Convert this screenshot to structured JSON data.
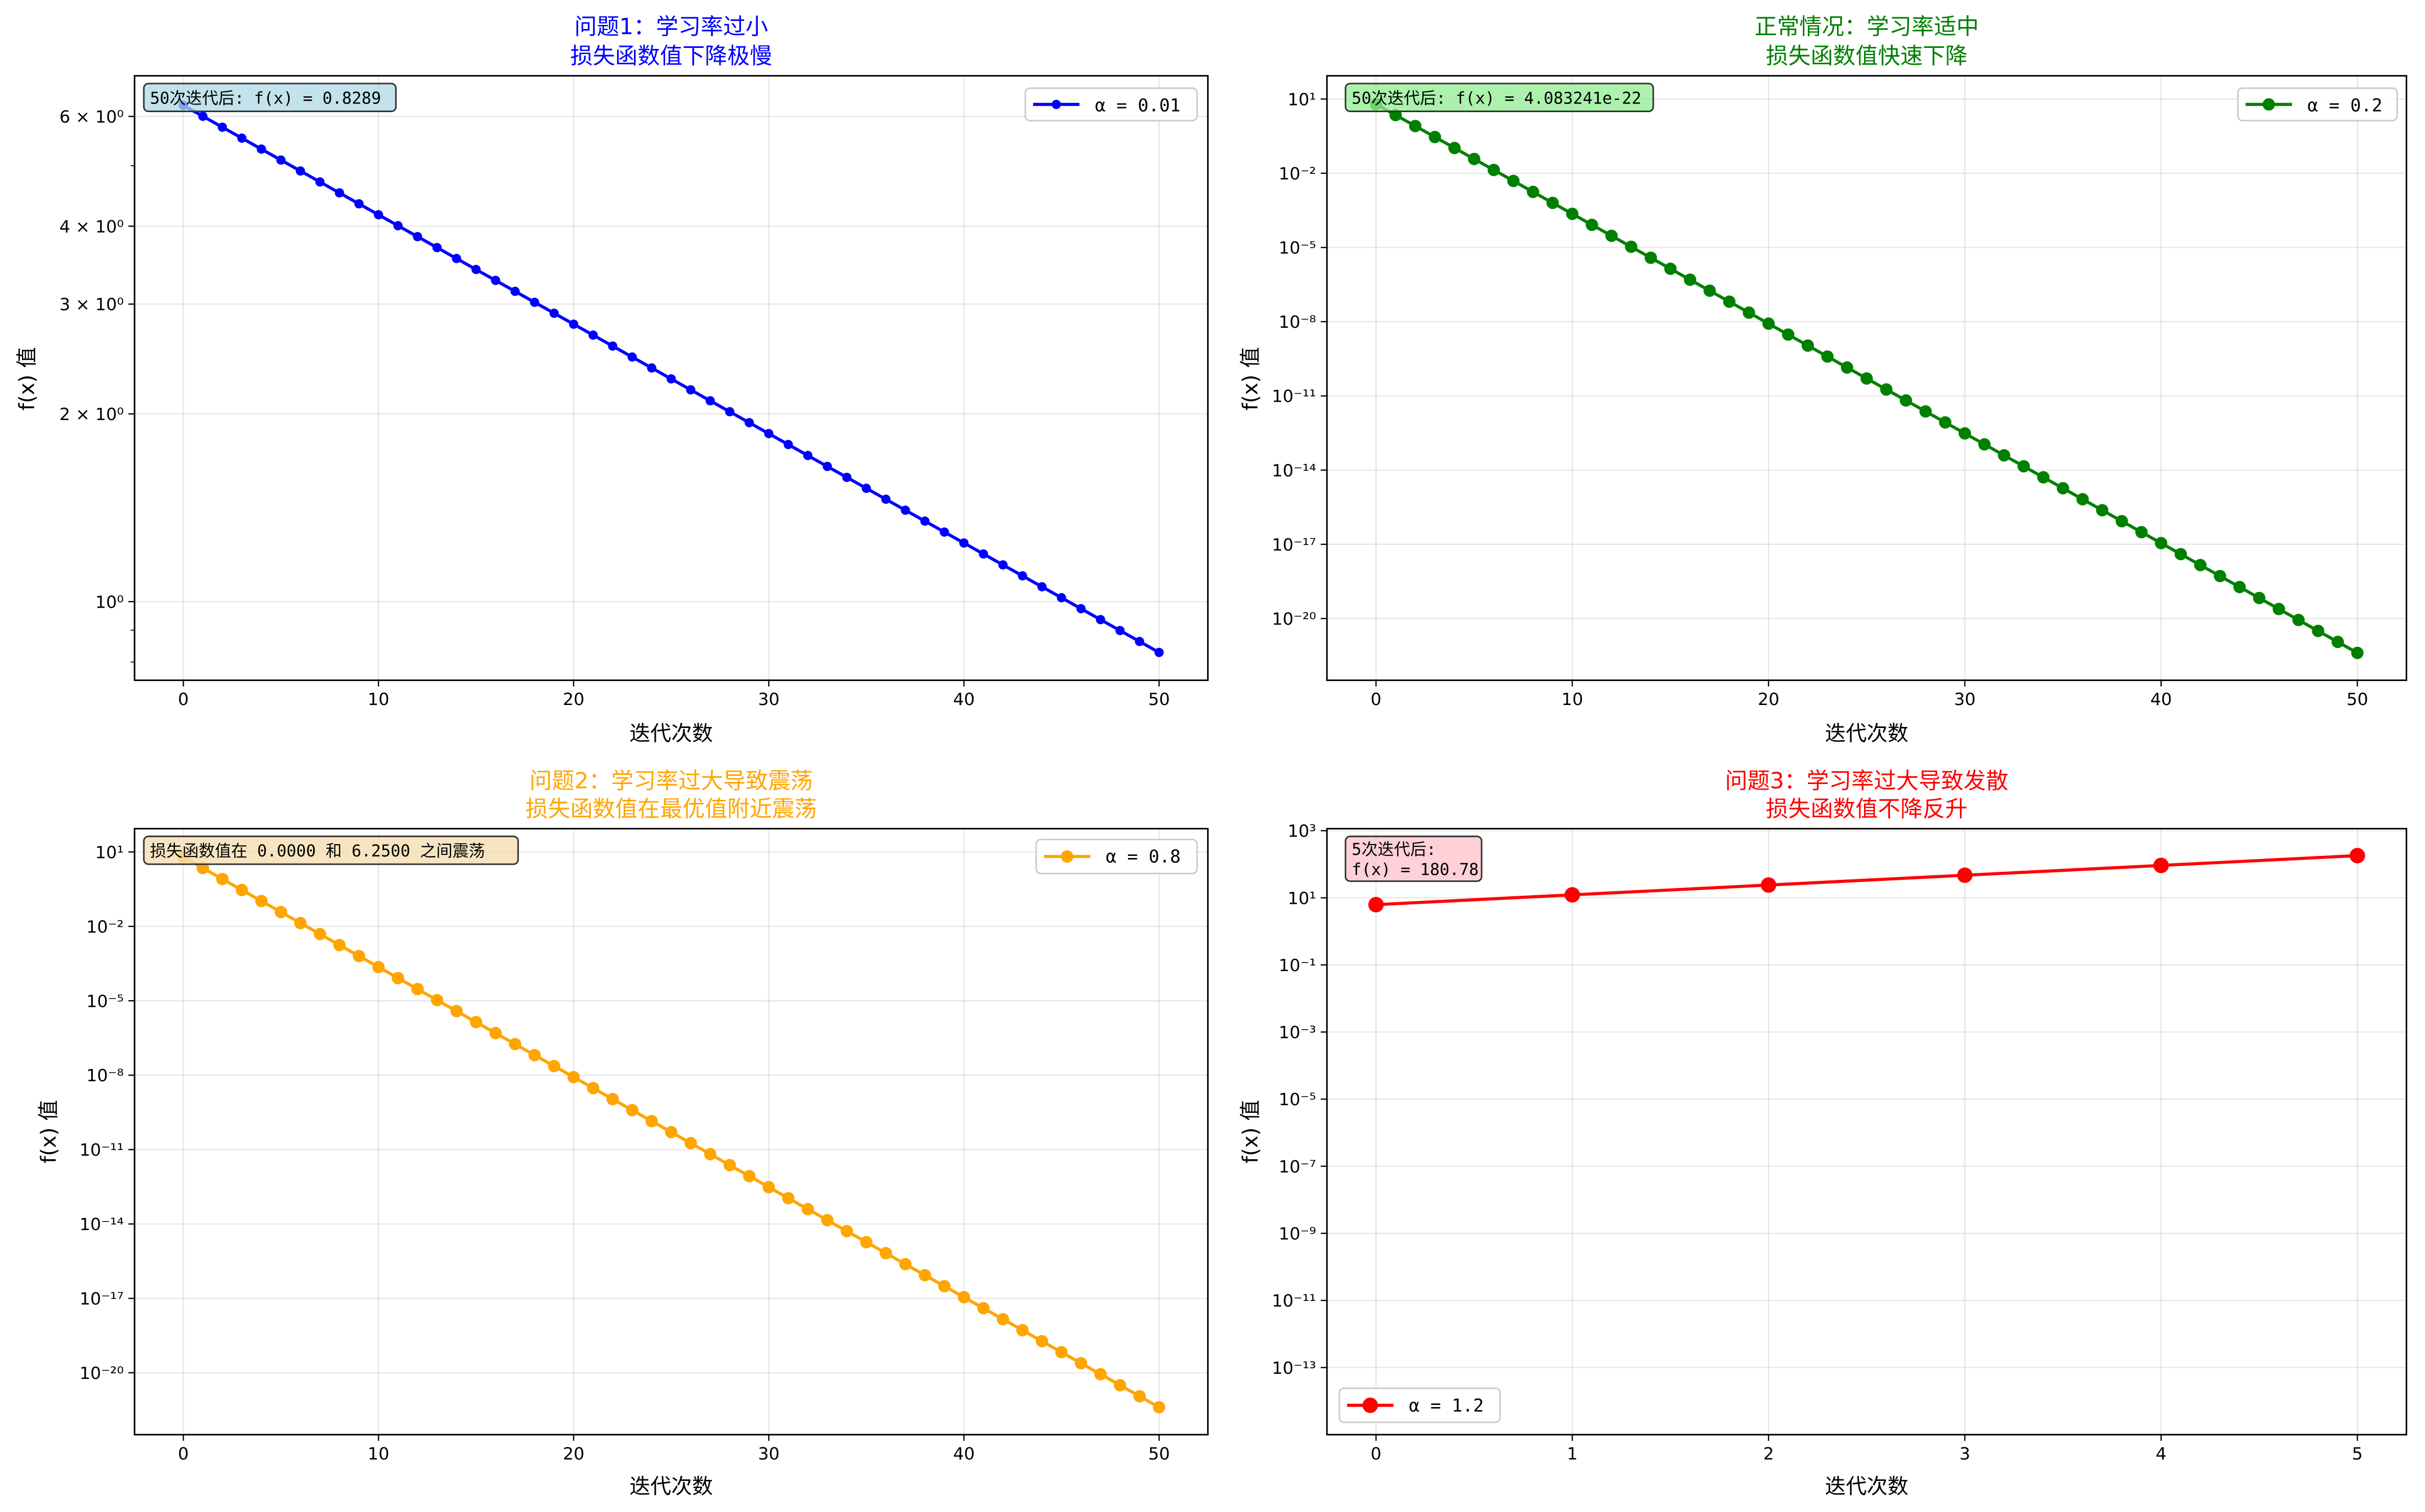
{
  "chart_data": [
    {
      "type": "line",
      "title": [
        "问题1：学习率过小",
        "损失函数值下降极慢"
      ],
      "title_color": "#0000ff",
      "xlabel": "迭代次数",
      "ylabel": "f(x) 值",
      "yscale": "log",
      "xlim": [
        -2.5,
        52.5
      ],
      "ylim": [
        0.748,
        6.97
      ],
      "grid": true,
      "xticks": [
        0,
        10,
        20,
        30,
        40,
        50
      ],
      "yticks": [
        {
          "value": 6,
          "label": "6 × 10⁰"
        },
        {
          "value": 4,
          "label": "4 × 10⁰"
        },
        {
          "value": 3,
          "label": "3 × 10⁰"
        },
        {
          "value": 2,
          "label": "2 × 10⁰"
        },
        {
          "value": 1,
          "label": "10⁰"
        }
      ],
      "legend": {
        "label": "α = 0.01",
        "placement": "upper-right"
      },
      "annotation": [
        "50次迭代后: f(x) = 0.8289"
      ],
      "annotation_color": "#add8e6",
      "series": [
        {
          "name": "α = 0.01",
          "color": "#0000ff",
          "x": [
            0,
            1,
            2,
            3,
            4,
            5,
            6,
            7,
            8,
            9,
            10,
            11,
            12,
            13,
            14,
            15,
            16,
            17,
            18,
            19,
            20,
            21,
            22,
            23,
            24,
            25,
            26,
            27,
            28,
            29,
            30,
            31,
            32,
            33,
            34,
            35,
            36,
            37,
            38,
            39,
            40,
            41,
            42,
            43,
            44,
            45,
            46,
            47,
            48,
            49,
            50
          ],
          "y": [
            6.25,
            6.0025,
            5.7648,
            5.5365,
            5.3172,
            5.1067,
            4.9044,
            4.7102,
            4.5237,
            4.3446,
            4.1725,
            4.0073,
            3.8486,
            3.6962,
            3.5498,
            3.4092,
            3.2742,
            3.1446,
            3.0201,
            2.9005,
            2.7856,
            2.6753,
            2.5694,
            2.4676,
            2.3699,
            2.2761,
            2.1859,
            2.0994,
            2.0162,
            1.9364,
            1.8597,
            1.7861,
            1.7153,
            1.6474,
            1.5822,
            1.5195,
            1.4594,
            1.4016,
            1.3461,
            1.2928,
            1.2416,
            1.1924,
            1.1452,
            1.0999,
            1.0563,
            1.0145,
            0.9743,
            0.9357,
            0.8987,
            0.8631,
            0.8289
          ]
        }
      ]
    },
    {
      "type": "line",
      "title": [
        "正常情况：学习率适中",
        "损失函数值快速下降"
      ],
      "title_color": "#008000",
      "xlabel": "迭代次数",
      "ylabel": "f(x) 值",
      "yscale": "log",
      "xlim": [
        -2.5,
        52.5
      ],
      "ylim": [
        3.2e-23,
        87
      ],
      "grid": true,
      "xticks": [
        0,
        10,
        20,
        30,
        40,
        50
      ],
      "yticks": [
        {
          "value": 10.0,
          "label": "10¹"
        },
        {
          "value": 0.01,
          "label": "10⁻²"
        },
        {
          "value": 1e-05,
          "label": "10⁻⁵"
        },
        {
          "value": 1e-08,
          "label": "10⁻⁸"
        },
        {
          "value": 1e-11,
          "label": "10⁻¹¹"
        },
        {
          "value": 1e-14,
          "label": "10⁻¹⁴"
        },
        {
          "value": 1e-17,
          "label": "10⁻¹⁷"
        },
        {
          "value": 1e-20,
          "label": "10⁻²⁰"
        }
      ],
      "legend": {
        "label": "α = 0.2",
        "placement": "upper-right"
      },
      "annotation": [
        "50次迭代后: f(x) = 4.083241e-22"
      ],
      "annotation_color": "#90ee90",
      "series": [
        {
          "name": "α = 0.2",
          "color": "#008000",
          "x": [
            0,
            1,
            2,
            3,
            4,
            5,
            6,
            7,
            8,
            9,
            10,
            11,
            12,
            13,
            14,
            15,
            16,
            17,
            18,
            19,
            20,
            21,
            22,
            23,
            24,
            25,
            26,
            27,
            28,
            29,
            30,
            31,
            32,
            33,
            34,
            35,
            36,
            37,
            38,
            39,
            40,
            41,
            42,
            43,
            44,
            45,
            46,
            47,
            48,
            49,
            50
          ],
          "y": [
            6.25,
            2.25,
            0.81,
            0.2916,
            0.104976,
            0.0377914,
            0.0136049,
            0.00489776,
            0.00176319,
            0.00063475,
            0.00022851,
            8.2264e-05,
            2.9615e-05,
            1.0661e-05,
            3.8381e-06,
            1.3817e-06,
            4.9741e-07,
            1.7907e-07,
            6.4464e-08,
            2.3207e-08,
            8.3545e-09,
            3.0076e-09,
            1.0827e-09,
            3.8978e-10,
            1.4032e-10,
            5.0516e-11,
            1.8186e-11,
            6.5469e-12,
            2.3569e-12,
            8.4847e-13,
            3.0545e-13,
            1.0996e-13,
            3.9585e-14,
            1.4251e-14,
            5.1303e-15,
            1.8469e-15,
            6.6488e-16,
            2.3936e-16,
            8.6169e-17,
            3.1021e-17,
            1.1168e-17,
            4.0203e-18,
            1.4473e-18,
            5.2103e-19,
            1.8757e-19,
            6.7525e-20,
            2.4309e-20,
            8.7512e-21,
            3.1504e-21,
            1.1341e-21,
            4.0832e-22
          ]
        }
      ]
    },
    {
      "type": "line",
      "title": [
        "问题2：学习率过大导致震荡",
        "损失函数值在最优值附近震荡"
      ],
      "title_color": "#ffa500",
      "xlabel": "迭代次数",
      "ylabel": "f(x) 值",
      "yscale": "log",
      "xlim": [
        -2.5,
        52.5
      ],
      "ylim": [
        3.2e-23,
        87
      ],
      "grid": true,
      "xticks": [
        0,
        10,
        20,
        30,
        40,
        50
      ],
      "yticks": [
        {
          "value": 10.0,
          "label": "10¹"
        },
        {
          "value": 0.01,
          "label": "10⁻²"
        },
        {
          "value": 1e-05,
          "label": "10⁻⁵"
        },
        {
          "value": 1e-08,
          "label": "10⁻⁸"
        },
        {
          "value": 1e-11,
          "label": "10⁻¹¹"
        },
        {
          "value": 1e-14,
          "label": "10⁻¹⁴"
        },
        {
          "value": 1e-17,
          "label": "10⁻¹⁷"
        },
        {
          "value": 1e-20,
          "label": "10⁻²⁰"
        }
      ],
      "legend": {
        "label": "α = 0.8",
        "placement": "upper-right"
      },
      "annotation": [
        "损失函数值在 0.0000 和 6.2500 之间震荡"
      ],
      "annotation_color": "#f5deb3",
      "series": [
        {
          "name": "α = 0.8",
          "color": "#ffa500",
          "x": [
            0,
            1,
            2,
            3,
            4,
            5,
            6,
            7,
            8,
            9,
            10,
            11,
            12,
            13,
            14,
            15,
            16,
            17,
            18,
            19,
            20,
            21,
            22,
            23,
            24,
            25,
            26,
            27,
            28,
            29,
            30,
            31,
            32,
            33,
            34,
            35,
            36,
            37,
            38,
            39,
            40,
            41,
            42,
            43,
            44,
            45,
            46,
            47,
            48,
            49,
            50
          ],
          "y": [
            6.25,
            2.25,
            0.81,
            0.2916,
            0.104976,
            0.0377914,
            0.0136049,
            0.00489776,
            0.00176319,
            0.00063475,
            0.00022851,
            8.2264e-05,
            2.9615e-05,
            1.0661e-05,
            3.8381e-06,
            1.3817e-06,
            4.9741e-07,
            1.7907e-07,
            6.4464e-08,
            2.3207e-08,
            8.3545e-09,
            3.0076e-09,
            1.0827e-09,
            3.8978e-10,
            1.4032e-10,
            5.0516e-11,
            1.8186e-11,
            6.5469e-12,
            2.3569e-12,
            8.4847e-13,
            3.0545e-13,
            1.0996e-13,
            3.9585e-14,
            1.4251e-14,
            5.1303e-15,
            1.8469e-15,
            6.6488e-16,
            2.3936e-16,
            8.6169e-17,
            3.1021e-17,
            1.1168e-17,
            4.0203e-18,
            1.4473e-18,
            5.2103e-19,
            1.8757e-19,
            6.7525e-20,
            2.4309e-20,
            8.7512e-21,
            3.1504e-21,
            1.1341e-21,
            4.0832e-22
          ]
        }
      ]
    },
    {
      "type": "line",
      "title": [
        "问题3：学习率过大导致发散",
        "损失函数值不降反升"
      ],
      "title_color": "#ff0000",
      "xlabel": "迭代次数",
      "ylabel": "f(x) 值",
      "yscale": "log",
      "xlim": [
        -0.25,
        5.25
      ],
      "ylim": [
        1e-15,
        1150
      ],
      "grid": true,
      "xticks": [
        0,
        1,
        2,
        3,
        4,
        5
      ],
      "yticks": [
        {
          "value": 1000.0,
          "label": "10³"
        },
        {
          "value": 10.0,
          "label": "10¹"
        },
        {
          "value": 0.1,
          "label": "10⁻¹"
        },
        {
          "value": 0.001,
          "label": "10⁻³"
        },
        {
          "value": 1e-05,
          "label": "10⁻⁵"
        },
        {
          "value": 1e-07,
          "label": "10⁻⁷"
        },
        {
          "value": 1e-09,
          "label": "10⁻⁹"
        },
        {
          "value": 1e-11,
          "label": "10⁻¹¹"
        },
        {
          "value": 1e-13,
          "label": "10⁻¹³"
        }
      ],
      "legend": {
        "label": "α = 1.2",
        "placement": "lower-left"
      },
      "annotation": [
        "5次迭代后:",
        "f(x) = 180.78"
      ],
      "annotation_color": "#ffc0cb",
      "series": [
        {
          "name": "α = 1.2",
          "color": "#ff0000",
          "x": [
            0,
            1,
            2,
            3,
            4,
            5
          ],
          "y": [
            6.25,
            12.25,
            24.01,
            47.06,
            92.24,
            180.78
          ]
        }
      ]
    }
  ]
}
